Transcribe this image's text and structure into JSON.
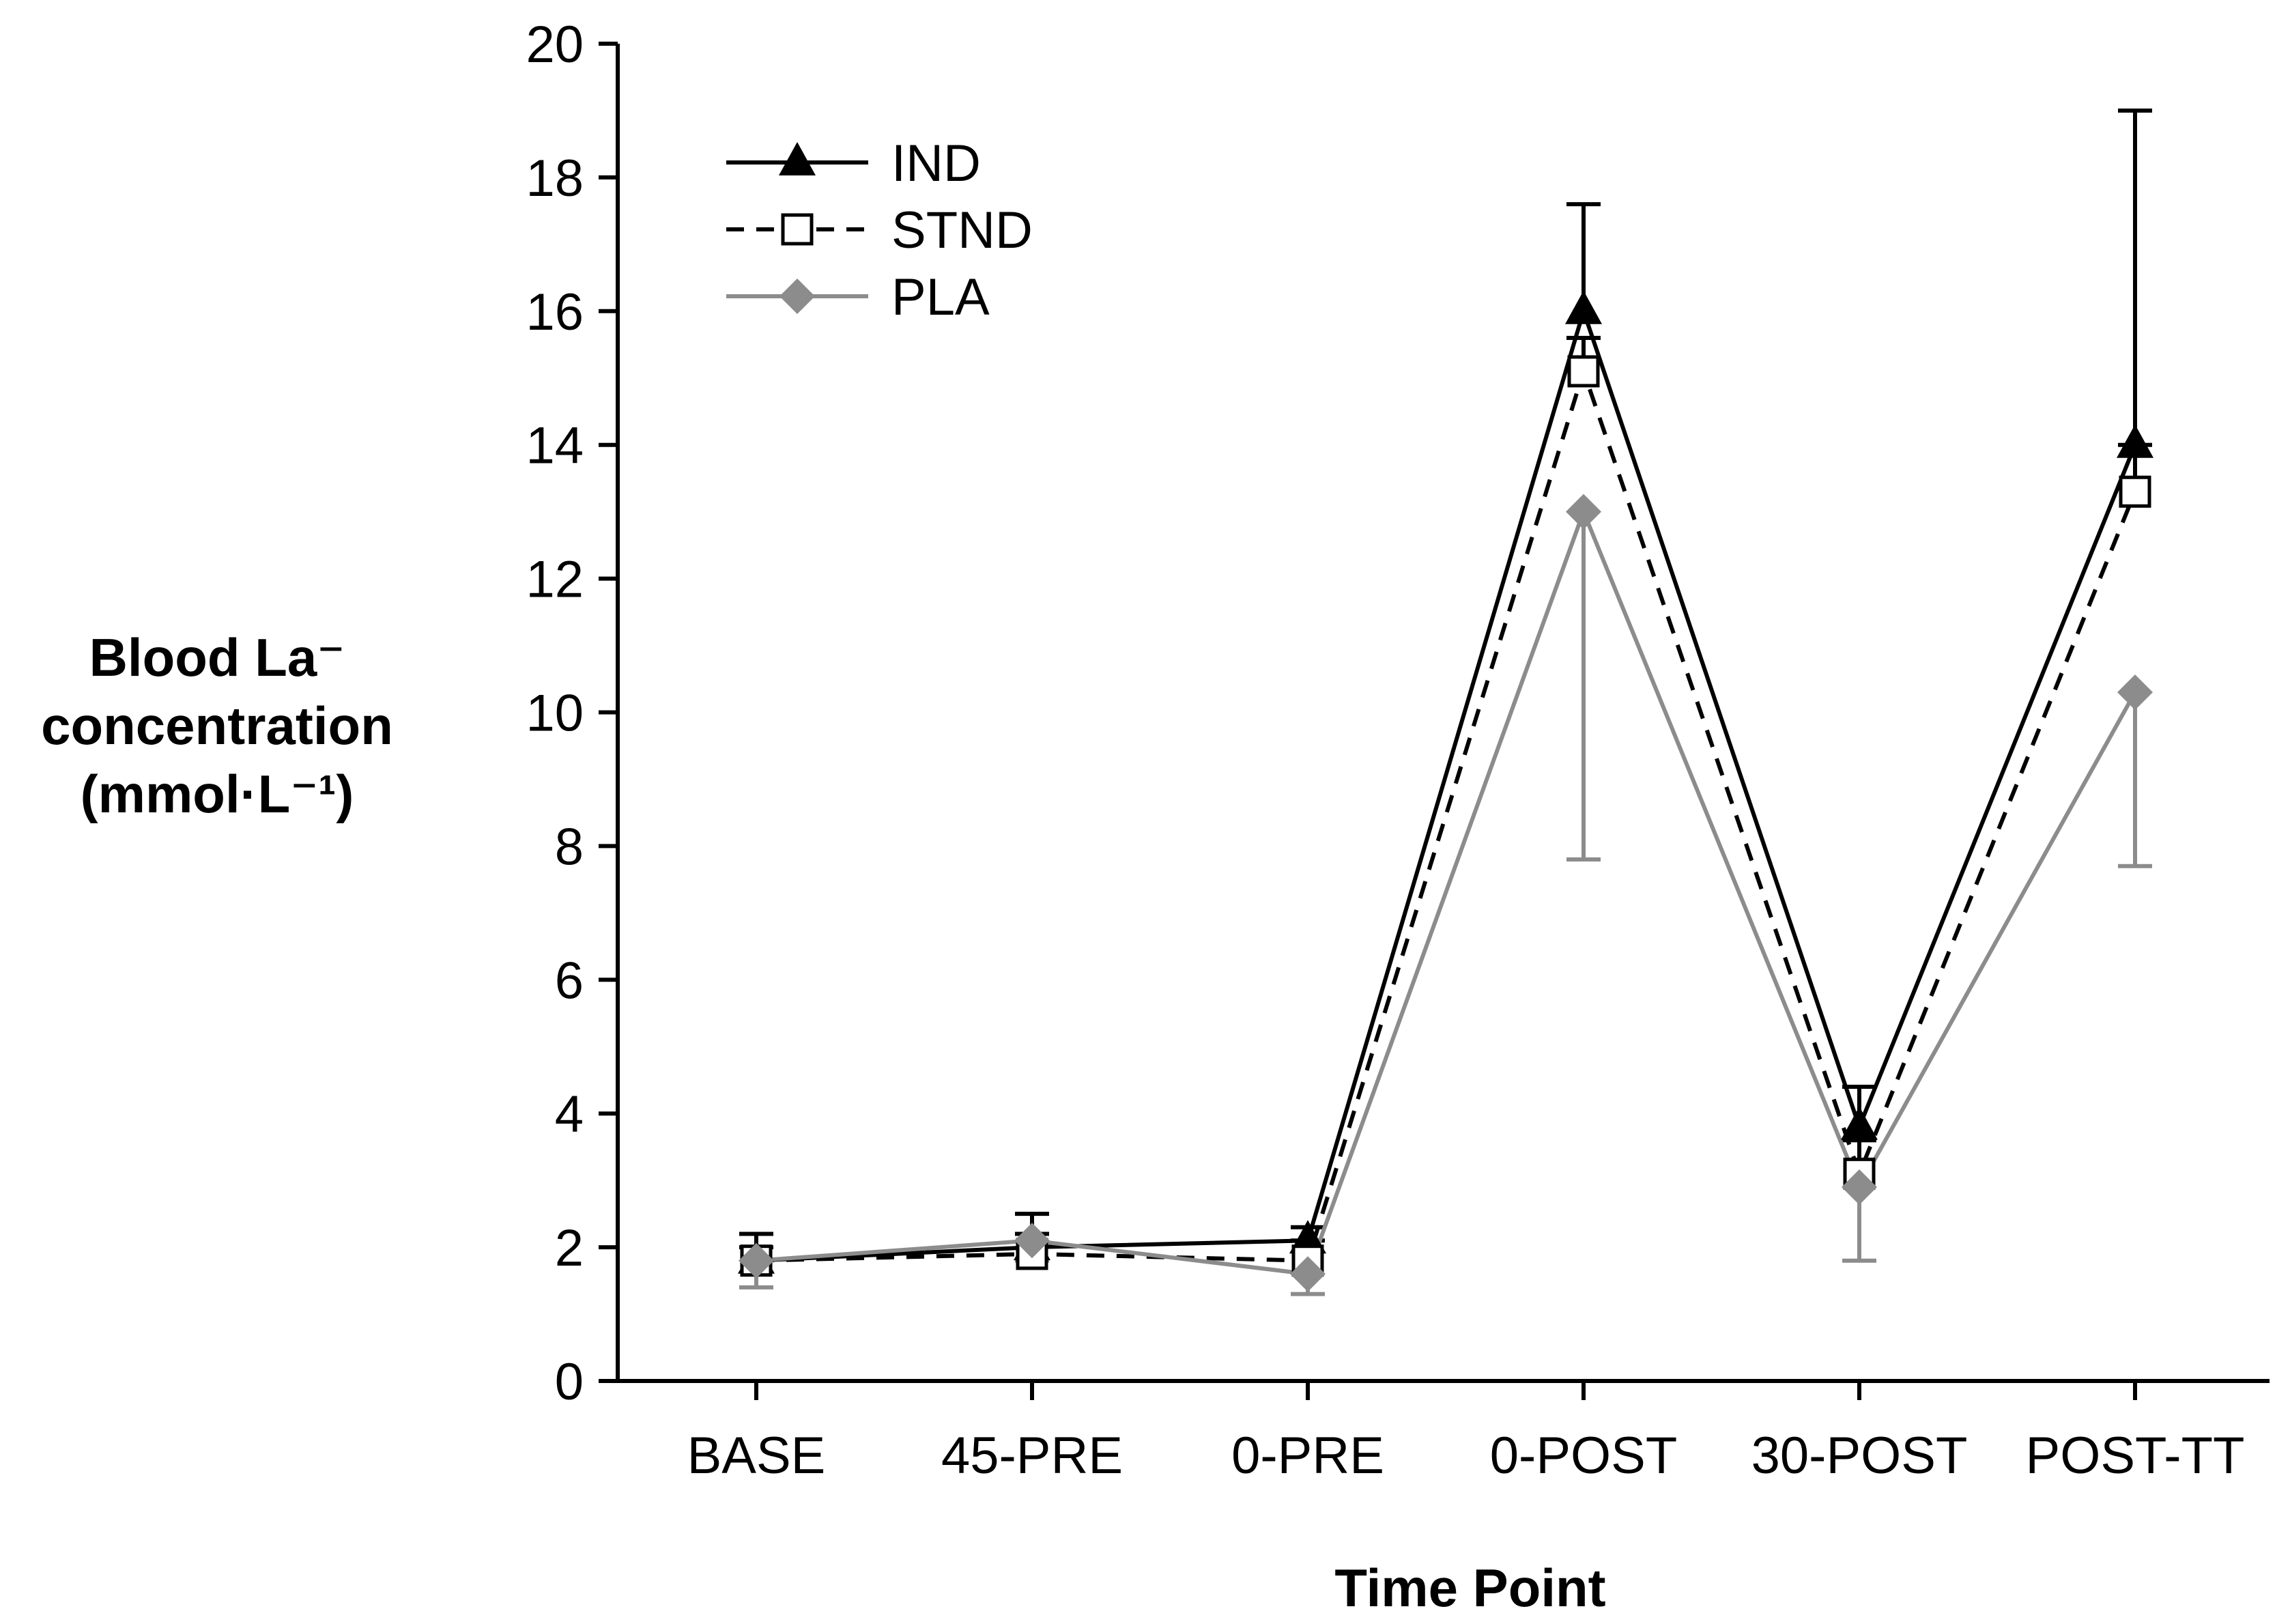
{
  "chart_data": {
    "type": "line",
    "title": "",
    "xlabel": "Time Point",
    "ylabel": [
      "Blood La⁻",
      "concentration",
      "(mmol·L⁻¹)"
    ],
    "categories": [
      "BASE",
      "45-PRE",
      "0-PRE",
      "0-POST",
      "30-POST",
      "POST-TT"
    ],
    "ylim": [
      0,
      20
    ],
    "yticks": [
      "0",
      "2",
      "4",
      "6",
      "8",
      "10",
      "12",
      "14",
      "16",
      "18",
      "20"
    ],
    "grid": false,
    "legend_position": "top-left",
    "series": [
      {
        "name": "IND",
        "color": "#000000",
        "line_style": "solid",
        "marker": "filled-triangle",
        "values": [
          1.8,
          2.0,
          2.1,
          16.0,
          3.8,
          14.0
        ],
        "error_upper": [
          2.2,
          2.5,
          2.3,
          17.6,
          4.4,
          19.0
        ]
      },
      {
        "name": "STND",
        "color": "#000000",
        "line_style": "dashed",
        "marker": "open-square",
        "values": [
          1.8,
          1.9,
          1.8,
          15.1,
          3.1,
          13.3
        ],
        "error_upper": [
          2.0,
          2.2,
          2.1,
          15.6,
          3.6,
          14.0
        ]
      },
      {
        "name": "PLA",
        "color": "#8c8c8c",
        "line_style": "solid",
        "marker": "filled-diamond",
        "values": [
          1.8,
          2.1,
          1.6,
          13.0,
          2.9,
          10.3
        ],
        "error_lower": [
          1.4,
          1.8,
          1.3,
          7.8,
          1.8,
          7.7
        ]
      }
    ]
  }
}
